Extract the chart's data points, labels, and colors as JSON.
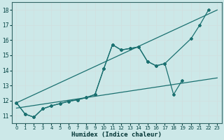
{
  "xlabel": "Humidex (Indice chaleur)",
  "bg_color": "#cce8e8",
  "grid_color": "#e8e8e8",
  "line_color": "#1a7070",
  "xlim": [
    -0.5,
    23.5
  ],
  "ylim": [
    10.5,
    18.5
  ],
  "xticks": [
    0,
    1,
    2,
    3,
    4,
    5,
    6,
    7,
    8,
    9,
    10,
    11,
    12,
    13,
    14,
    15,
    16,
    17,
    18,
    19,
    20,
    21,
    22,
    23
  ],
  "yticks": [
    11,
    12,
    13,
    14,
    15,
    16,
    17,
    18
  ],
  "line_wavy1": {
    "x": [
      0,
      1,
      2,
      3,
      4,
      5,
      6,
      7,
      8,
      9,
      10,
      11,
      12,
      13,
      14,
      15,
      16,
      17,
      20,
      21,
      22
    ],
    "y": [
      11.85,
      11.1,
      10.9,
      11.45,
      11.65,
      11.8,
      11.95,
      12.05,
      12.2,
      12.4,
      14.1,
      15.7,
      15.35,
      15.45,
      15.55,
      14.6,
      14.3,
      14.45,
      16.1,
      17.0,
      18.0
    ]
  },
  "line_wavy2": {
    "x": [
      0,
      1,
      2,
      3,
      4,
      5,
      6,
      7,
      8,
      9,
      10,
      11,
      12,
      13,
      14,
      15,
      16,
      17,
      18,
      19
    ],
    "y": [
      11.85,
      11.1,
      10.9,
      11.45,
      11.65,
      11.8,
      11.95,
      12.05,
      12.2,
      12.4,
      14.1,
      15.7,
      15.35,
      15.45,
      15.55,
      14.6,
      14.3,
      14.45,
      12.4,
      13.35
    ]
  },
  "line_straight_upper": {
    "x": [
      0,
      23
    ],
    "y": [
      11.85,
      18.0
    ]
  },
  "line_straight_lower": {
    "x": [
      0,
      23
    ],
    "y": [
      11.5,
      13.5
    ]
  }
}
